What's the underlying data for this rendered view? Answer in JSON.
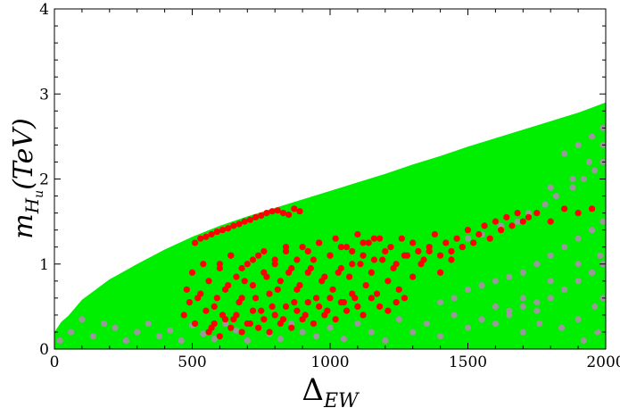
{
  "chart_data": {
    "type": "scatter",
    "title": "",
    "xlabel": "Δ",
    "xlabel_subscript": "EW",
    "ylabel": "m",
    "ylabel_subscript": "H",
    "ylabel_subsubscript": "u",
    "ylabel_suffix": "(TeV)",
    "xlim": [
      0,
      2000
    ],
    "ylim": [
      0,
      4
    ],
    "xticks": [
      0,
      500,
      1000,
      1500,
      2000
    ],
    "yticks": [
      0,
      1,
      2,
      3,
      4
    ],
    "xtick_labels": [
      "0",
      "500",
      "1000",
      "1500",
      "2000"
    ],
    "ytick_labels": [
      "0",
      "1",
      "2",
      "3",
      "4"
    ],
    "grid": false,
    "legend": "none",
    "series": [
      {
        "color": "#00ee00",
        "kind": "filled-region",
        "upper_boundary_x": [
          0,
          25,
          50,
          100,
          200,
          300,
          400,
          500,
          600,
          700,
          800,
          900,
          1000,
          1100,
          1200,
          1300,
          1400,
          1500,
          1600,
          1700,
          1800,
          1900,
          2000
        ],
        "upper_boundary_y": [
          0.2,
          0.32,
          0.39,
          0.58,
          0.82,
          1.0,
          1.17,
          1.32,
          1.45,
          1.56,
          1.66,
          1.76,
          1.86,
          1.96,
          2.06,
          2.17,
          2.27,
          2.38,
          2.48,
          2.58,
          2.68,
          2.78,
          2.9
        ]
      },
      {
        "color": "#999999",
        "kind": "points",
        "x": [
          20,
          60,
          100,
          140,
          180,
          220,
          260,
          300,
          340,
          380,
          420,
          460,
          500,
          540,
          580,
          620,
          660,
          700,
          740,
          780,
          820,
          860,
          900,
          950,
          1000,
          1050,
          1100,
          1150,
          1200,
          1250,
          1300,
          1350,
          1400,
          1450,
          1500,
          1550,
          1600,
          1650,
          1700,
          1750,
          1800,
          1850,
          1900,
          1950,
          1980,
          1400,
          1450,
          1500,
          1550,
          1600,
          1650,
          1700,
          1750,
          1800,
          1850,
          1900,
          1950,
          1990,
          1600,
          1650,
          1700,
          1750,
          1800,
          1850,
          1900,
          1950,
          1990,
          1500,
          1550,
          1620,
          1680,
          1720,
          1780,
          1820,
          1880,
          1920,
          1960,
          1990,
          1700,
          1760,
          1840,
          1900,
          1960,
          1990,
          1850,
          1900,
          1950,
          1990,
          1800,
          1880,
          1940,
          1990,
          1920,
          1970
        ],
        "y": [
          0.1,
          0.2,
          0.35,
          0.15,
          0.3,
          0.25,
          0.1,
          0.2,
          0.3,
          0.15,
          0.22,
          0.1,
          0.28,
          0.18,
          0.12,
          0.3,
          0.22,
          0.1,
          0.25,
          0.18,
          0.12,
          0.3,
          0.2,
          0.15,
          0.25,
          0.12,
          0.3,
          0.2,
          0.1,
          0.35,
          0.2,
          0.3,
          0.15,
          0.4,
          0.25,
          0.35,
          0.5,
          0.45,
          0.6,
          0.55,
          0.8,
          0.7,
          1.0,
          0.9,
          1.1,
          0.55,
          0.6,
          0.7,
          0.75,
          0.8,
          0.85,
          0.9,
          1.0,
          1.1,
          1.2,
          1.3,
          1.4,
          1.5,
          0.3,
          0.4,
          0.5,
          0.45,
          0.6,
          0.7,
          0.8,
          0.9,
          1.0,
          1.3,
          1.35,
          1.45,
          1.5,
          1.6,
          1.7,
          1.8,
          1.9,
          2.0,
          2.1,
          2.2,
          0.2,
          0.3,
          0.25,
          0.35,
          0.5,
          0.6,
          2.3,
          2.4,
          2.5,
          2.6,
          1.9,
          2.0,
          2.2,
          2.4,
          0.1,
          0.2
        ]
      },
      {
        "color": "#00ee00",
        "kind": "points",
        "x": [
          1450,
          1500,
          1580,
          1650,
          1720,
          1780,
          1820,
          1870,
          1920,
          1960,
          1980
        ],
        "y": [
          0.1,
          0.15,
          0.05,
          0.1,
          0.2,
          0.35,
          0.3,
          0.15,
          0.4,
          0.25,
          0.45
        ]
      },
      {
        "color": "#ff0000",
        "kind": "points",
        "x": [
          510,
          530,
          550,
          570,
          590,
          610,
          630,
          650,
          670,
          690,
          710,
          730,
          750,
          770,
          790,
          810,
          830,
          850,
          870,
          890,
          480,
          500,
          520,
          540,
          560,
          580,
          600,
          620,
          640,
          660,
          680,
          700,
          720,
          740,
          760,
          780,
          800,
          820,
          840,
          860,
          880,
          900,
          920,
          940,
          960,
          980,
          1000,
          1020,
          1040,
          1060,
          1080,
          1100,
          1120,
          1140,
          1160,
          1180,
          1200,
          1220,
          1240,
          1260,
          1280,
          1300,
          1320,
          1340,
          1360,
          1380,
          1400,
          1420,
          1440,
          1460,
          1480,
          1500,
          1520,
          1540,
          1560,
          1580,
          1600,
          1620,
          1640,
          1660,
          1680,
          1700,
          1720,
          1750,
          1800,
          1850,
          1900,
          1950,
          470,
          490,
          510,
          530,
          550,
          570,
          590,
          610,
          630,
          650,
          670,
          690,
          710,
          730,
          750,
          770,
          790,
          810,
          830,
          850,
          870,
          890,
          910,
          930,
          950,
          970,
          990,
          1010,
          1030,
          1050,
          1070,
          1090,
          1110,
          1130,
          1150,
          1170,
          1190,
          1210,
          1230,
          1250,
          1270,
          1300,
          1330,
          1360,
          1400,
          1440,
          1480,
          560,
          580,
          600,
          620,
          640,
          660,
          680,
          700,
          720,
          740,
          760,
          780,
          800,
          820,
          840,
          860,
          880,
          900,
          920,
          940,
          960,
          980,
          1000,
          1020,
          1040,
          1060,
          1080,
          1100,
          1120,
          1150,
          1180,
          1210,
          1240,
          1270,
          600,
          640,
          680,
          720,
          760,
          800,
          840,
          880,
          920,
          960,
          1000,
          1040,
          1080,
          1120,
          1160
        ],
        "y": [
          1.25,
          1.3,
          1.32,
          1.35,
          1.38,
          1.4,
          1.42,
          1.45,
          1.47,
          1.5,
          1.52,
          1.55,
          1.57,
          1.6,
          1.62,
          1.63,
          1.6,
          1.58,
          1.65,
          1.62,
          0.7,
          0.9,
          0.6,
          1.0,
          0.8,
          0.5,
          0.95,
          0.7,
          1.1,
          0.85,
          0.6,
          1.0,
          0.75,
          1.1,
          0.9,
          0.65,
          1.05,
          0.8,
          1.15,
          0.95,
          0.7,
          1.2,
          0.9,
          1.05,
          1.25,
          0.85,
          1.1,
          1.3,
          0.95,
          1.2,
          1.0,
          1.35,
          1.1,
          1.25,
          1.05,
          1.3,
          1.15,
          1.2,
          1.0,
          1.3,
          1.1,
          1.25,
          1.15,
          1.05,
          1.2,
          1.35,
          1.1,
          1.25,
          1.15,
          1.3,
          1.2,
          1.4,
          1.25,
          1.35,
          1.45,
          1.3,
          1.5,
          1.4,
          1.55,
          1.45,
          1.6,
          1.5,
          1.55,
          1.6,
          1.5,
          1.65,
          1.6,
          1.65,
          0.4,
          0.55,
          0.3,
          0.65,
          0.45,
          0.25,
          0.6,
          0.4,
          0.75,
          0.35,
          0.55,
          0.8,
          0.3,
          0.6,
          0.45,
          0.85,
          0.5,
          0.7,
          0.35,
          0.9,
          0.55,
          0.75,
          0.4,
          0.95,
          0.6,
          0.8,
          0.45,
          0.7,
          0.9,
          0.55,
          0.85,
          0.6,
          1.0,
          0.75,
          0.9,
          0.65,
          1.05,
          0.8,
          0.95,
          0.7,
          1.1,
          0.85,
          1.0,
          1.15,
          0.9,
          1.05,
          1.2,
          0.2,
          0.3,
          0.15,
          0.35,
          0.25,
          0.4,
          0.2,
          0.3,
          0.45,
          0.25,
          0.35,
          0.2,
          0.4,
          0.3,
          0.5,
          0.25,
          0.45,
          0.35,
          0.55,
          0.3,
          0.5,
          0.4,
          0.6,
          0.35,
          0.55,
          0.45,
          0.65,
          0.5,
          0.4,
          0.6,
          0.5,
          0.45,
          0.55,
          0.6,
          1.0,
          1.1,
          0.95,
          1.05,
          1.15,
          1.0,
          1.2,
          1.05,
          1.15,
          1.25,
          1.1,
          1.2,
          1.15,
          1.25,
          1.3
        ]
      }
    ]
  }
}
